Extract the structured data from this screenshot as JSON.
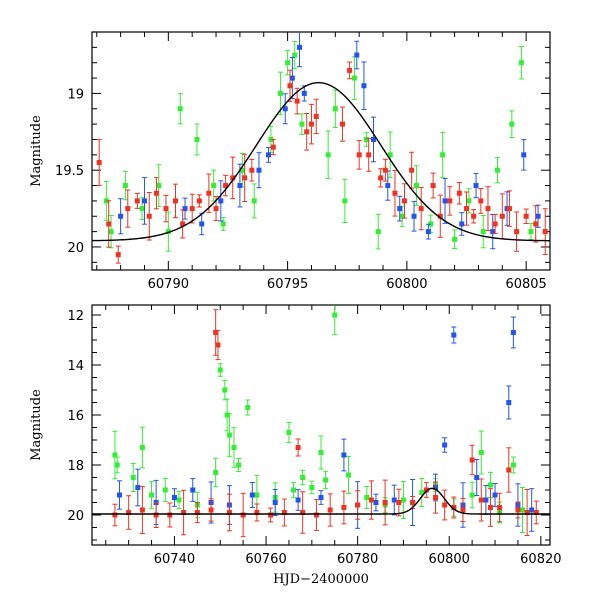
{
  "colors": {
    "green": "#33ee33",
    "blue": "#2255ee",
    "red": "#ee3322",
    "model": "#000000",
    "axis": "#000000"
  },
  "chart_data": [
    {
      "type": "scatter",
      "title": "",
      "xlabel": "",
      "ylabel": "Magnitude",
      "xlim": [
        60786.8,
        60806
      ],
      "ylim": [
        20.15,
        18.6
      ],
      "y_inverted": true,
      "grid": false,
      "xticks": [
        60790,
        60795,
        60800,
        60805
      ],
      "yticks": [
        19,
        19.5,
        20
      ],
      "series": [
        {
          "color_key": "green",
          "points": [
            [
              60787.4,
              19.7
            ],
            [
              60787.6,
              19.9
            ],
            [
              60788.2,
              19.6
            ],
            [
              60788.9,
              19.75
            ],
            [
              60789.6,
              19.6
            ],
            [
              60790.0,
              19.9
            ],
            [
              60790.5,
              19.1
            ],
            [
              60791.2,
              19.3
            ],
            [
              60791.9,
              19.6
            ],
            [
              60792.3,
              19.85
            ],
            [
              60793.1,
              19.5
            ],
            [
              60793.6,
              19.7
            ],
            [
              60794.3,
              19.3
            ],
            [
              60794.7,
              19.0
            ],
            [
              60795.0,
              18.8
            ],
            [
              60795.3,
              18.75
            ],
            [
              60795.6,
              19.2
            ],
            [
              60796.7,
              19.4
            ],
            [
              60797.0,
              19.1
            ],
            [
              60797.4,
              19.7
            ],
            [
              60797.8,
              18.9
            ],
            [
              60798.3,
              19.3
            ],
            [
              60798.8,
              19.9
            ],
            [
              60799.3,
              19.4
            ],
            [
              60799.8,
              19.8
            ],
            [
              60800.4,
              19.6
            ],
            [
              60801.0,
              19.85
            ],
            [
              60801.5,
              19.4
            ],
            [
              60802.0,
              19.95
            ],
            [
              60802.6,
              19.7
            ],
            [
              60803.2,
              19.9
            ],
            [
              60803.8,
              19.5
            ],
            [
              60804.4,
              19.2
            ],
            [
              60804.8,
              18.8
            ],
            [
              60805.2,
              19.9
            ]
          ]
        },
        {
          "color_key": "blue",
          "points": [
            [
              60788.0,
              19.8
            ],
            [
              60789.0,
              19.7
            ],
            [
              60790.7,
              19.75
            ],
            [
              60791.4,
              19.85
            ],
            [
              60792.2,
              19.7
            ],
            [
              60793.0,
              19.6
            ],
            [
              60793.8,
              19.5
            ],
            [
              60794.2,
              19.4
            ],
            [
              60794.9,
              19.1
            ],
            [
              60795.2,
              18.9
            ],
            [
              60795.5,
              18.7
            ],
            [
              60795.7,
              19.0
            ],
            [
              60797.9,
              18.75
            ],
            [
              60798.2,
              18.95
            ],
            [
              60798.6,
              19.3
            ],
            [
              60799.2,
              19.6
            ],
            [
              60799.7,
              19.75
            ],
            [
              60800.3,
              19.8
            ],
            [
              60800.9,
              19.9
            ],
            [
              60801.6,
              19.7
            ],
            [
              60802.3,
              19.85
            ],
            [
              60802.9,
              19.6
            ],
            [
              60803.6,
              19.9
            ],
            [
              60804.2,
              19.75
            ],
            [
              60804.9,
              19.4
            ],
            [
              60805.5,
              19.8
            ]
          ]
        },
        {
          "color_key": "red",
          "points": [
            [
              60787.1,
              19.45
            ],
            [
              60787.5,
              19.85
            ],
            [
              60787.9,
              20.05
            ],
            [
              60788.3,
              19.75
            ],
            [
              60788.7,
              19.7
            ],
            [
              60789.2,
              19.8
            ],
            [
              60789.5,
              19.65
            ],
            [
              60789.9,
              19.75
            ],
            [
              60790.3,
              19.7
            ],
            [
              60790.6,
              19.85
            ],
            [
              60791.0,
              19.75
            ],
            [
              60791.3,
              19.7
            ],
            [
              60791.7,
              19.65
            ],
            [
              60792.0,
              19.75
            ],
            [
              60792.4,
              19.6
            ],
            [
              60792.7,
              19.55
            ],
            [
              60793.2,
              19.55
            ],
            [
              60793.5,
              19.5
            ],
            [
              60794.4,
              19.35
            ],
            [
              60795.1,
              18.95
            ],
            [
              60795.4,
              19.05
            ],
            [
              60795.8,
              19.25
            ],
            [
              60796.0,
              19.2
            ],
            [
              60796.2,
              19.15
            ],
            [
              60797.3,
              19.2
            ],
            [
              60797.6,
              18.85
            ],
            [
              60798.0,
              19.4
            ],
            [
              60798.4,
              19.4
            ],
            [
              60798.9,
              19.55
            ],
            [
              60799.1,
              19.5
            ],
            [
              60799.5,
              19.65
            ],
            [
              60799.9,
              19.7
            ],
            [
              60800.2,
              19.5
            ],
            [
              60800.6,
              19.75
            ],
            [
              60801.1,
              19.6
            ],
            [
              60801.4,
              19.8
            ],
            [
              60801.8,
              19.7
            ],
            [
              60802.2,
              19.65
            ],
            [
              60802.5,
              19.75
            ],
            [
              60802.8,
              19.8
            ],
            [
              60803.1,
              19.7
            ],
            [
              60803.4,
              19.75
            ],
            [
              60803.7,
              19.85
            ],
            [
              60804.0,
              19.8
            ],
            [
              60804.3,
              19.75
            ],
            [
              60804.6,
              19.9
            ],
            [
              60805.0,
              19.8
            ],
            [
              60805.4,
              19.85
            ],
            [
              60805.8,
              19.9
            ]
          ]
        }
      ],
      "model_curve": {
        "color_key": "model",
        "t0": 60796.3,
        "baseline": 19.96,
        "peak": 18.93,
        "sigma": 2.6
      }
    },
    {
      "type": "scatter",
      "title": "",
      "xlabel": "HJD−2400000",
      "ylabel": "Magnitude",
      "xlim": [
        60722,
        60822
      ],
      "ylim": [
        21.2,
        11.6
      ],
      "y_inverted": true,
      "grid": false,
      "xticks": [
        60740,
        60760,
        60780,
        60800,
        60820
      ],
      "yticks": [
        12,
        14,
        16,
        18,
        20
      ],
      "series": [
        {
          "color_key": "green",
          "points": [
            [
              60727,
              17.6
            ],
            [
              60727.5,
              18.0
            ],
            [
              60731,
              18.5
            ],
            [
              60733,
              17.3
            ],
            [
              60735,
              19.2
            ],
            [
              60738,
              19.0
            ],
            [
              60741,
              19.4
            ],
            [
              60745,
              19.6
            ],
            [
              60749,
              18.3
            ],
            [
              60750,
              14.2
            ],
            [
              60751,
              15.0
            ],
            [
              60751.5,
              16.0
            ],
            [
              60752,
              16.8
            ],
            [
              60753,
              17.3
            ],
            [
              60754,
              18.0
            ],
            [
              60756,
              15.7
            ],
            [
              60758,
              19.2
            ],
            [
              60762,
              19.3
            ],
            [
              60765,
              16.7
            ],
            [
              60766,
              19.0
            ],
            [
              60768,
              18.5
            ],
            [
              60770,
              18.9
            ],
            [
              60772,
              17.5
            ],
            [
              60773,
              18.6
            ],
            [
              60775,
              12.0
            ],
            [
              60778,
              18.4
            ],
            [
              60782,
              19.3
            ],
            [
              60786,
              19.6
            ],
            [
              60790,
              19.4
            ],
            [
              60794,
              19.1
            ],
            [
              60797,
              18.8
            ],
            [
              60801,
              19.7
            ],
            [
              60805,
              19.2
            ],
            [
              60807,
              17.5
            ],
            [
              60809,
              18.8
            ],
            [
              60811,
              19.9
            ],
            [
              60814,
              18.0
            ],
            [
              60816,
              19.8
            ]
          ]
        },
        {
          "color_key": "blue",
          "points": [
            [
              60728,
              19.2
            ],
            [
              60732,
              18.9
            ],
            [
              60736,
              19.5
            ],
            [
              60740,
              19.3
            ],
            [
              60744,
              19.0
            ],
            [
              60748,
              19.5
            ],
            [
              60752,
              19.6
            ],
            [
              60757,
              19.2
            ],
            [
              60762,
              19.5
            ],
            [
              60767,
              19.4
            ],
            [
              60772,
              19.3
            ],
            [
              60777,
              17.6
            ],
            [
              60780,
              19.6
            ],
            [
              60784,
              19.5
            ],
            [
              60788,
              19.4
            ],
            [
              60792,
              19.5
            ],
            [
              60797,
              18.9
            ],
            [
              60799,
              17.2
            ],
            [
              60801,
              12.8
            ],
            [
              60803,
              19.6
            ],
            [
              60806,
              18.5
            ],
            [
              60808,
              19.4
            ],
            [
              60810,
              19.2
            ],
            [
              60813,
              15.5
            ],
            [
              60814,
              12.7
            ],
            [
              60815,
              19.6
            ],
            [
              60818,
              19.8
            ]
          ]
        },
        {
          "color_key": "red",
          "points": [
            [
              60727,
              20.0
            ],
            [
              60730,
              19.9
            ],
            [
              60733,
              19.8
            ],
            [
              60736,
              20.0
            ],
            [
              60739,
              20.0
            ],
            [
              60742,
              19.9
            ],
            [
              60745,
              19.9
            ],
            [
              60748,
              19.8
            ],
            [
              60749,
              12.7
            ],
            [
              60749.5,
              13.2
            ],
            [
              60752,
              19.9
            ],
            [
              60755,
              20.0
            ],
            [
              60758,
              19.9
            ],
            [
              60761,
              20.0
            ],
            [
              60764,
              19.9
            ],
            [
              60767,
              17.3
            ],
            [
              60768,
              19.9
            ],
            [
              60771,
              20.0
            ],
            [
              60774,
              19.8
            ],
            [
              60777,
              19.7
            ],
            [
              60780,
              19.6
            ],
            [
              60783,
              19.4
            ],
            [
              60786,
              19.5
            ],
            [
              60789,
              19.5
            ],
            [
              60792,
              19.5
            ],
            [
              60795,
              19.0
            ],
            [
              60797,
              19.3
            ],
            [
              60799,
              19.6
            ],
            [
              60801,
              19.7
            ],
            [
              60803,
              19.8
            ],
            [
              60805,
              17.8
            ],
            [
              60807,
              19.4
            ],
            [
              60809,
              19.7
            ],
            [
              60811,
              19.7
            ],
            [
              60813,
              18.2
            ],
            [
              60815,
              19.8
            ],
            [
              60817,
              19.9
            ],
            [
              60819,
              19.9
            ]
          ]
        }
      ],
      "model_curve": {
        "color_key": "model",
        "t0": 60796.3,
        "baseline": 19.96,
        "peak": 18.93,
        "sigma": 2.6
      }
    }
  ]
}
